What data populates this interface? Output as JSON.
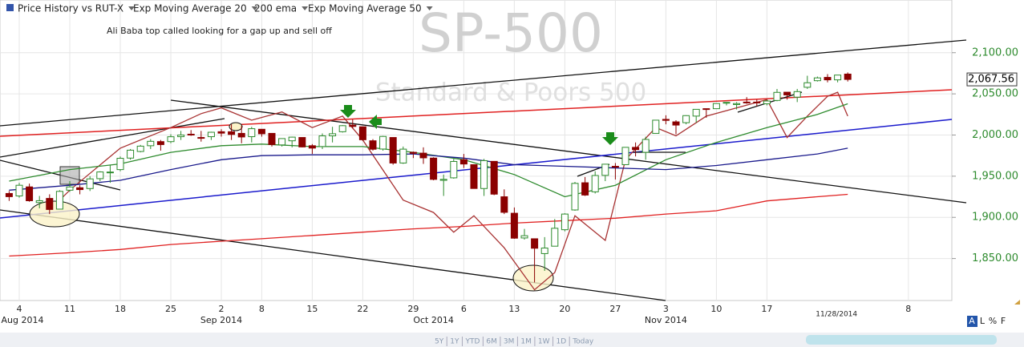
{
  "chart_data": {
    "type": "candlestick",
    "title": "SP-500",
    "subtitle": "Standard & Poors 500",
    "annotation": "Ali Baba top called looking for a gap up and sell off",
    "end_date_label": "11/28/2014",
    "close_label": "2,067.56",
    "up_color": "#2e8b2e",
    "down_color": "#8b0000",
    "x": [
      "2014-08-01",
      "2014-08-04",
      "2014-08-05",
      "2014-08-06",
      "2014-08-07",
      "2014-08-08",
      "2014-08-11",
      "2014-08-12",
      "2014-08-13",
      "2014-08-14",
      "2014-08-15",
      "2014-08-18",
      "2014-08-19",
      "2014-08-20",
      "2014-08-21",
      "2014-08-22",
      "2014-08-25",
      "2014-08-26",
      "2014-08-27",
      "2014-08-28",
      "2014-08-29",
      "2014-09-02",
      "2014-09-03",
      "2014-09-04",
      "2014-09-05",
      "2014-09-08",
      "2014-09-09",
      "2014-09-10",
      "2014-09-11",
      "2014-09-12",
      "2014-09-15",
      "2014-09-16",
      "2014-09-17",
      "2014-09-18",
      "2014-09-19",
      "2014-09-22",
      "2014-09-23",
      "2014-09-24",
      "2014-09-25",
      "2014-09-26",
      "2014-09-29",
      "2014-09-30",
      "2014-10-01",
      "2014-10-02",
      "2014-10-03",
      "2014-10-06",
      "2014-10-07",
      "2014-10-08",
      "2014-10-09",
      "2014-10-10",
      "2014-10-13",
      "2014-10-14",
      "2014-10-15",
      "2014-10-16",
      "2014-10-17",
      "2014-10-20",
      "2014-10-21",
      "2014-10-22",
      "2014-10-23",
      "2014-10-24",
      "2014-10-27",
      "2014-10-28",
      "2014-10-29",
      "2014-10-30",
      "2014-10-31",
      "2014-11-03",
      "2014-11-04",
      "2014-11-05",
      "2014-11-06",
      "2014-11-07",
      "2014-11-10",
      "2014-11-11",
      "2014-11-12",
      "2014-11-13",
      "2014-11-14",
      "2014-11-17",
      "2014-11-18",
      "2014-11-19",
      "2014-11-20",
      "2014-11-21",
      "2014-11-24",
      "2014-11-25",
      "2014-11-26",
      "2014-11-28"
    ],
    "open": [
      1929,
      1926,
      1937,
      1918,
      1923,
      1910,
      1933,
      1936,
      1935,
      1947,
      1955,
      1958,
      1972,
      1980,
      1987,
      1992,
      1992,
      1998,
      2001,
      1997,
      1998,
      2004,
      2004,
      2002,
      1998,
      2007,
      2002,
      1988,
      1993,
      1997,
      1987,
      1986,
      1999,
      2004,
      2012,
      2010,
      1993,
      1983,
      1997,
      1966,
      1979,
      1978,
      1972,
      1945,
      1948,
      1970,
      1964,
      1935,
      1968,
      1925,
      1905,
      1875,
      1874,
      1856,
      1865,
      1885,
      1909,
      1942,
      1931,
      1951,
      1962,
      1964,
      1985,
      1979,
      2002,
      2019,
      2016,
      2015,
      2023,
      2032,
      2032,
      2039,
      2037,
      2040,
      2040,
      2038,
      2042,
      2052,
      2046,
      2058,
      2066,
      2070,
      2067,
      2074
    ],
    "high": [
      1932,
      1942,
      1941,
      1926,
      1928,
      1933,
      1944,
      1939,
      1950,
      1956,
      1964,
      1974,
      1983,
      1988,
      1995,
      1994,
      2001,
      2005,
      2006,
      2005,
      2004,
      2007,
      2013,
      2011,
      2010,
      2007,
      2002,
      1996,
      1998,
      1997,
      1989,
      2002,
      2010,
      2012,
      2019,
      2010,
      1995,
      1999,
      1997,
      1986,
      1980,
      1985,
      1973,
      1952,
      1971,
      1977,
      1964,
      1971,
      1968,
      1934,
      1912,
      1886,
      1874,
      1876,
      1898,
      1905,
      1943,
      1949,
      1956,
      1965,
      1966,
      1985,
      1991,
      1998,
      2018,
      2024,
      2018,
      2024,
      2031,
      2032,
      2038,
      2040,
      2040,
      2046,
      2043,
      2043,
      2056,
      2052,
      2056,
      2072,
      2071,
      2074,
      2073,
      2076
    ],
    "low": [
      1920,
      1924,
      1919,
      1911,
      1904,
      1910,
      1931,
      1928,
      1932,
      1944,
      1942,
      1956,
      1970,
      1979,
      1983,
      1981,
      1990,
      1994,
      1999,
      1992,
      1994,
      1998,
      1994,
      1990,
      1991,
      1998,
      1986,
      1986,
      1985,
      1985,
      1977,
      1983,
      1991,
      2003,
      2008,
      1993,
      1981,
      1981,
      1964,
      1965,
      1972,
      1965,
      1945,
      1926,
      1947,
      1960,
      1935,
      1926,
      1927,
      1904,
      1874,
      1873,
      1821,
      1835,
      1865,
      1883,
      1908,
      1926,
      1929,
      1944,
      1946,
      1964,
      1974,
      1970,
      2002,
      2013,
      2001,
      2013,
      2015,
      2021,
      2032,
      2036,
      2031,
      2038,
      2035,
      2036,
      2041,
      2043,
      2040,
      2056,
      2065,
      2064,
      2064,
      2065
    ],
    "close": [
      1925.15,
      1938.99,
      1920.21,
      1920.24,
      1909.57,
      1931.59,
      1936.92,
      1933.75,
      1946.72,
      1955.18,
      1955.06,
      1971.74,
      1981.6,
      1986.51,
      1992.37,
      1988.4,
      1997.92,
      2000.02,
      2000.12,
      1996.74,
      2003.37,
      2002.28,
      2000.72,
      1997.65,
      2007.71,
      2001.54,
      1988.44,
      1995.69,
      1997.45,
      1985.54,
      1984.13,
      1998.98,
      2001.57,
      2011.36,
      2010.4,
      1994.29,
      1982.77,
      1998.3,
      1965.99,
      1982.85,
      1977.8,
      1972.29,
      1946.16,
      1946.17,
      1967.9,
      1964.82,
      1935.1,
      1968.89,
      1928.21,
      1906.13,
      1874.74,
      1877.7,
      1862.49,
      1862.76,
      1886.76,
      1904.01,
      1941.28,
      1927.11,
      1950.82,
      1964.58,
      1961.63,
      1985.05,
      1982.3,
      1994.65,
      2018.05,
      2017.81,
      2012.1,
      2023.57,
      2031.21,
      2031.92,
      2038.26,
      2039.68,
      2038.25,
      2039.33,
      2039.82,
      2041.32,
      2051.8,
      2048.72,
      2052.75,
      2063.5,
      2069.41,
      2067.03,
      2072.83,
      2067.56
    ],
    "series": [
      {
        "name": "Price History vs RUT-X",
        "color": "#a83232",
        "x": [
          "2014-08-08",
          "2014-08-11",
          "2014-08-18",
          "2014-08-25",
          "2014-08-28",
          "2014-09-02",
          "2014-09-05",
          "2014-09-10",
          "2014-09-15",
          "2014-09-18",
          "2014-09-22",
          "2014-09-26",
          "2014-10-01",
          "2014-10-03",
          "2014-10-07",
          "2014-10-10",
          "2014-10-15",
          "2014-10-17",
          "2014-10-21",
          "2014-10-24",
          "2014-10-28",
          "2014-10-31",
          "2014-11-04",
          "2014-11-07",
          "2014-11-12",
          "2014-11-17",
          "2014-11-19",
          "2014-11-21",
          "2014-11-25",
          "2014-11-26",
          "2014-11-28"
        ],
        "values": [
          1921,
          1933,
          1984,
          2009,
          2026,
          2033,
          2018,
          2028,
          2009,
          2023,
          1994,
          1921,
          1906,
          1882,
          1902,
          1863,
          1812,
          1833,
          1902,
          1872,
          1970,
          2009,
          1999,
          2023,
          2033,
          2043,
          1997,
          2023,
          2047,
          2052,
          2023
        ]
      },
      {
        "name": "Exp Moving Average 20",
        "color": "#2e8b2e",
        "x": [
          "2014-08-01",
          "2014-08-11",
          "2014-08-18",
          "2014-08-25",
          "2014-09-02",
          "2014-09-08",
          "2014-09-15",
          "2014-09-22",
          "2014-09-29",
          "2014-10-06",
          "2014-10-13",
          "2014-10-20",
          "2014-10-27",
          "2014-11-03",
          "2014-11-10",
          "2014-11-17",
          "2014-11-24",
          "2014-11-28"
        ],
        "values": [
          1944,
          1958,
          1965,
          1979,
          1987,
          1989,
          1986,
          1986,
          1979,
          1970,
          1952,
          1925,
          1939,
          1970,
          1991,
          2009,
          2025,
          2038
        ]
      },
      {
        "name": "200 ema",
        "color": "#e02020",
        "x": [
          "2014-08-01",
          "2014-08-11",
          "2014-08-18",
          "2014-08-25",
          "2014-09-02",
          "2014-09-08",
          "2014-09-15",
          "2014-09-22",
          "2014-09-29",
          "2014-10-06",
          "2014-10-13",
          "2014-10-20",
          "2014-10-27",
          "2014-11-03",
          "2014-11-10",
          "2014-11-17",
          "2014-11-24",
          "2014-11-28"
        ],
        "values": [
          1853,
          1857,
          1861,
          1867,
          1871,
          1874,
          1878,
          1882,
          1886,
          1889,
          1893,
          1896,
          1899,
          1904,
          1908,
          1920,
          1925,
          1928
        ]
      },
      {
        "name": "Exp Moving Average 50",
        "color": "#1a1a8c",
        "x": [
          "2014-08-01",
          "2014-08-11",
          "2014-08-18",
          "2014-08-25",
          "2014-09-02",
          "2014-09-08",
          "2014-09-15",
          "2014-09-22",
          "2014-09-29",
          "2014-10-06",
          "2014-10-13",
          "2014-10-20",
          "2014-10-27",
          "2014-11-03",
          "2014-11-10",
          "2014-11-17",
          "2014-11-24",
          "2014-11-28"
        ],
        "values": [
          1933,
          1939,
          1945,
          1958,
          1970,
          1975,
          1976,
          1976,
          1977,
          1972,
          1964,
          1962,
          1960,
          1958,
          1963,
          1970,
          1977,
          1984
        ]
      }
    ],
    "ylim": [
      1799,
      2164
    ],
    "yticks": [
      {
        "value": 2100,
        "label": "2,100.00"
      },
      {
        "value": 2050,
        "label": "2,050.00"
      },
      {
        "value": 2000,
        "label": "2,000.00"
      },
      {
        "value": 1950,
        "label": "1,950.00"
      },
      {
        "value": 1900,
        "label": "1,900.00"
      },
      {
        "value": 1850,
        "label": "1,850.00"
      }
    ],
    "xticks": [
      {
        "value": "2014-08-04",
        "label": "4"
      },
      {
        "value": "2014-08-11",
        "label": "11"
      },
      {
        "value": "2014-08-18",
        "label": "18"
      },
      {
        "value": "2014-08-25",
        "label": "25"
      },
      {
        "value": "2014-09-02",
        "label": "2"
      },
      {
        "value": "2014-09-08",
        "label": "8"
      },
      {
        "value": "2014-09-15",
        "label": "15"
      },
      {
        "value": "2014-09-22",
        "label": "22"
      },
      {
        "value": "2014-09-29",
        "label": "29"
      },
      {
        "value": "2014-10-06",
        "label": "6"
      },
      {
        "value": "2014-10-13",
        "label": "13"
      },
      {
        "value": "2014-10-20",
        "label": "20"
      },
      {
        "value": "2014-10-27",
        "label": "27"
      },
      {
        "value": "2014-11-03",
        "label": "3"
      },
      {
        "value": "2014-11-10",
        "label": "10"
      },
      {
        "value": "2014-11-17",
        "label": "17"
      },
      {
        "value": "2014-12-08",
        "label": "8"
      }
    ],
    "month_ticks": [
      {
        "value": "2014-08-01",
        "label": "Aug 2014"
      },
      {
        "value": "2014-09-02",
        "label": "Sep 2014"
      },
      {
        "value": "2014-10-01",
        "label": "Oct 2014"
      },
      {
        "value": "2014-11-03",
        "label": "Nov 2014"
      }
    ],
    "grid": true
  },
  "range_buttons": [
    "5Y",
    "1Y",
    "YTD",
    "6M",
    "3M",
    "1M",
    "1W",
    "1D",
    "Today"
  ],
  "toolbar": [
    "A",
    "L",
    "%",
    "F"
  ]
}
